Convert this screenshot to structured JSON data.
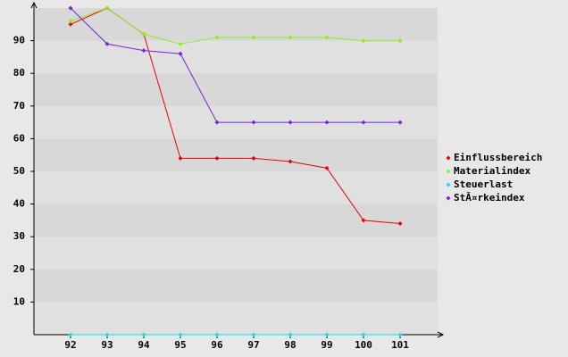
{
  "chart_data": {
    "type": "line",
    "categories": [
      "92",
      "93",
      "94",
      "95",
      "96",
      "97",
      "98",
      "99",
      "100",
      "101"
    ],
    "series": [
      {
        "name": "Einflussbereich",
        "color": "#ee0000",
        "values": [
          95,
          100,
          92,
          54,
          54,
          54,
          53,
          51,
          35,
          34
        ]
      },
      {
        "name": "Materialindex",
        "color": "#88ee22",
        "values": [
          96,
          100,
          92,
          89,
          91,
          91,
          91,
          91,
          90,
          90
        ]
      },
      {
        "name": "Steuerlast",
        "color": "#11ddee",
        "values": [
          0,
          0,
          0,
          0,
          0,
          0,
          0,
          0,
          0,
          0
        ]
      },
      {
        "name": "StÃ¤rkeindex",
        "color": "#7722dd",
        "values": [
          100,
          89,
          87,
          86,
          65,
          65,
          65,
          65,
          65,
          65
        ]
      }
    ],
    "ylim": [
      0,
      100
    ],
    "yticks": [
      10,
      20,
      30,
      40,
      50,
      60,
      70,
      80,
      90
    ],
    "grid": true,
    "legend": "right"
  }
}
